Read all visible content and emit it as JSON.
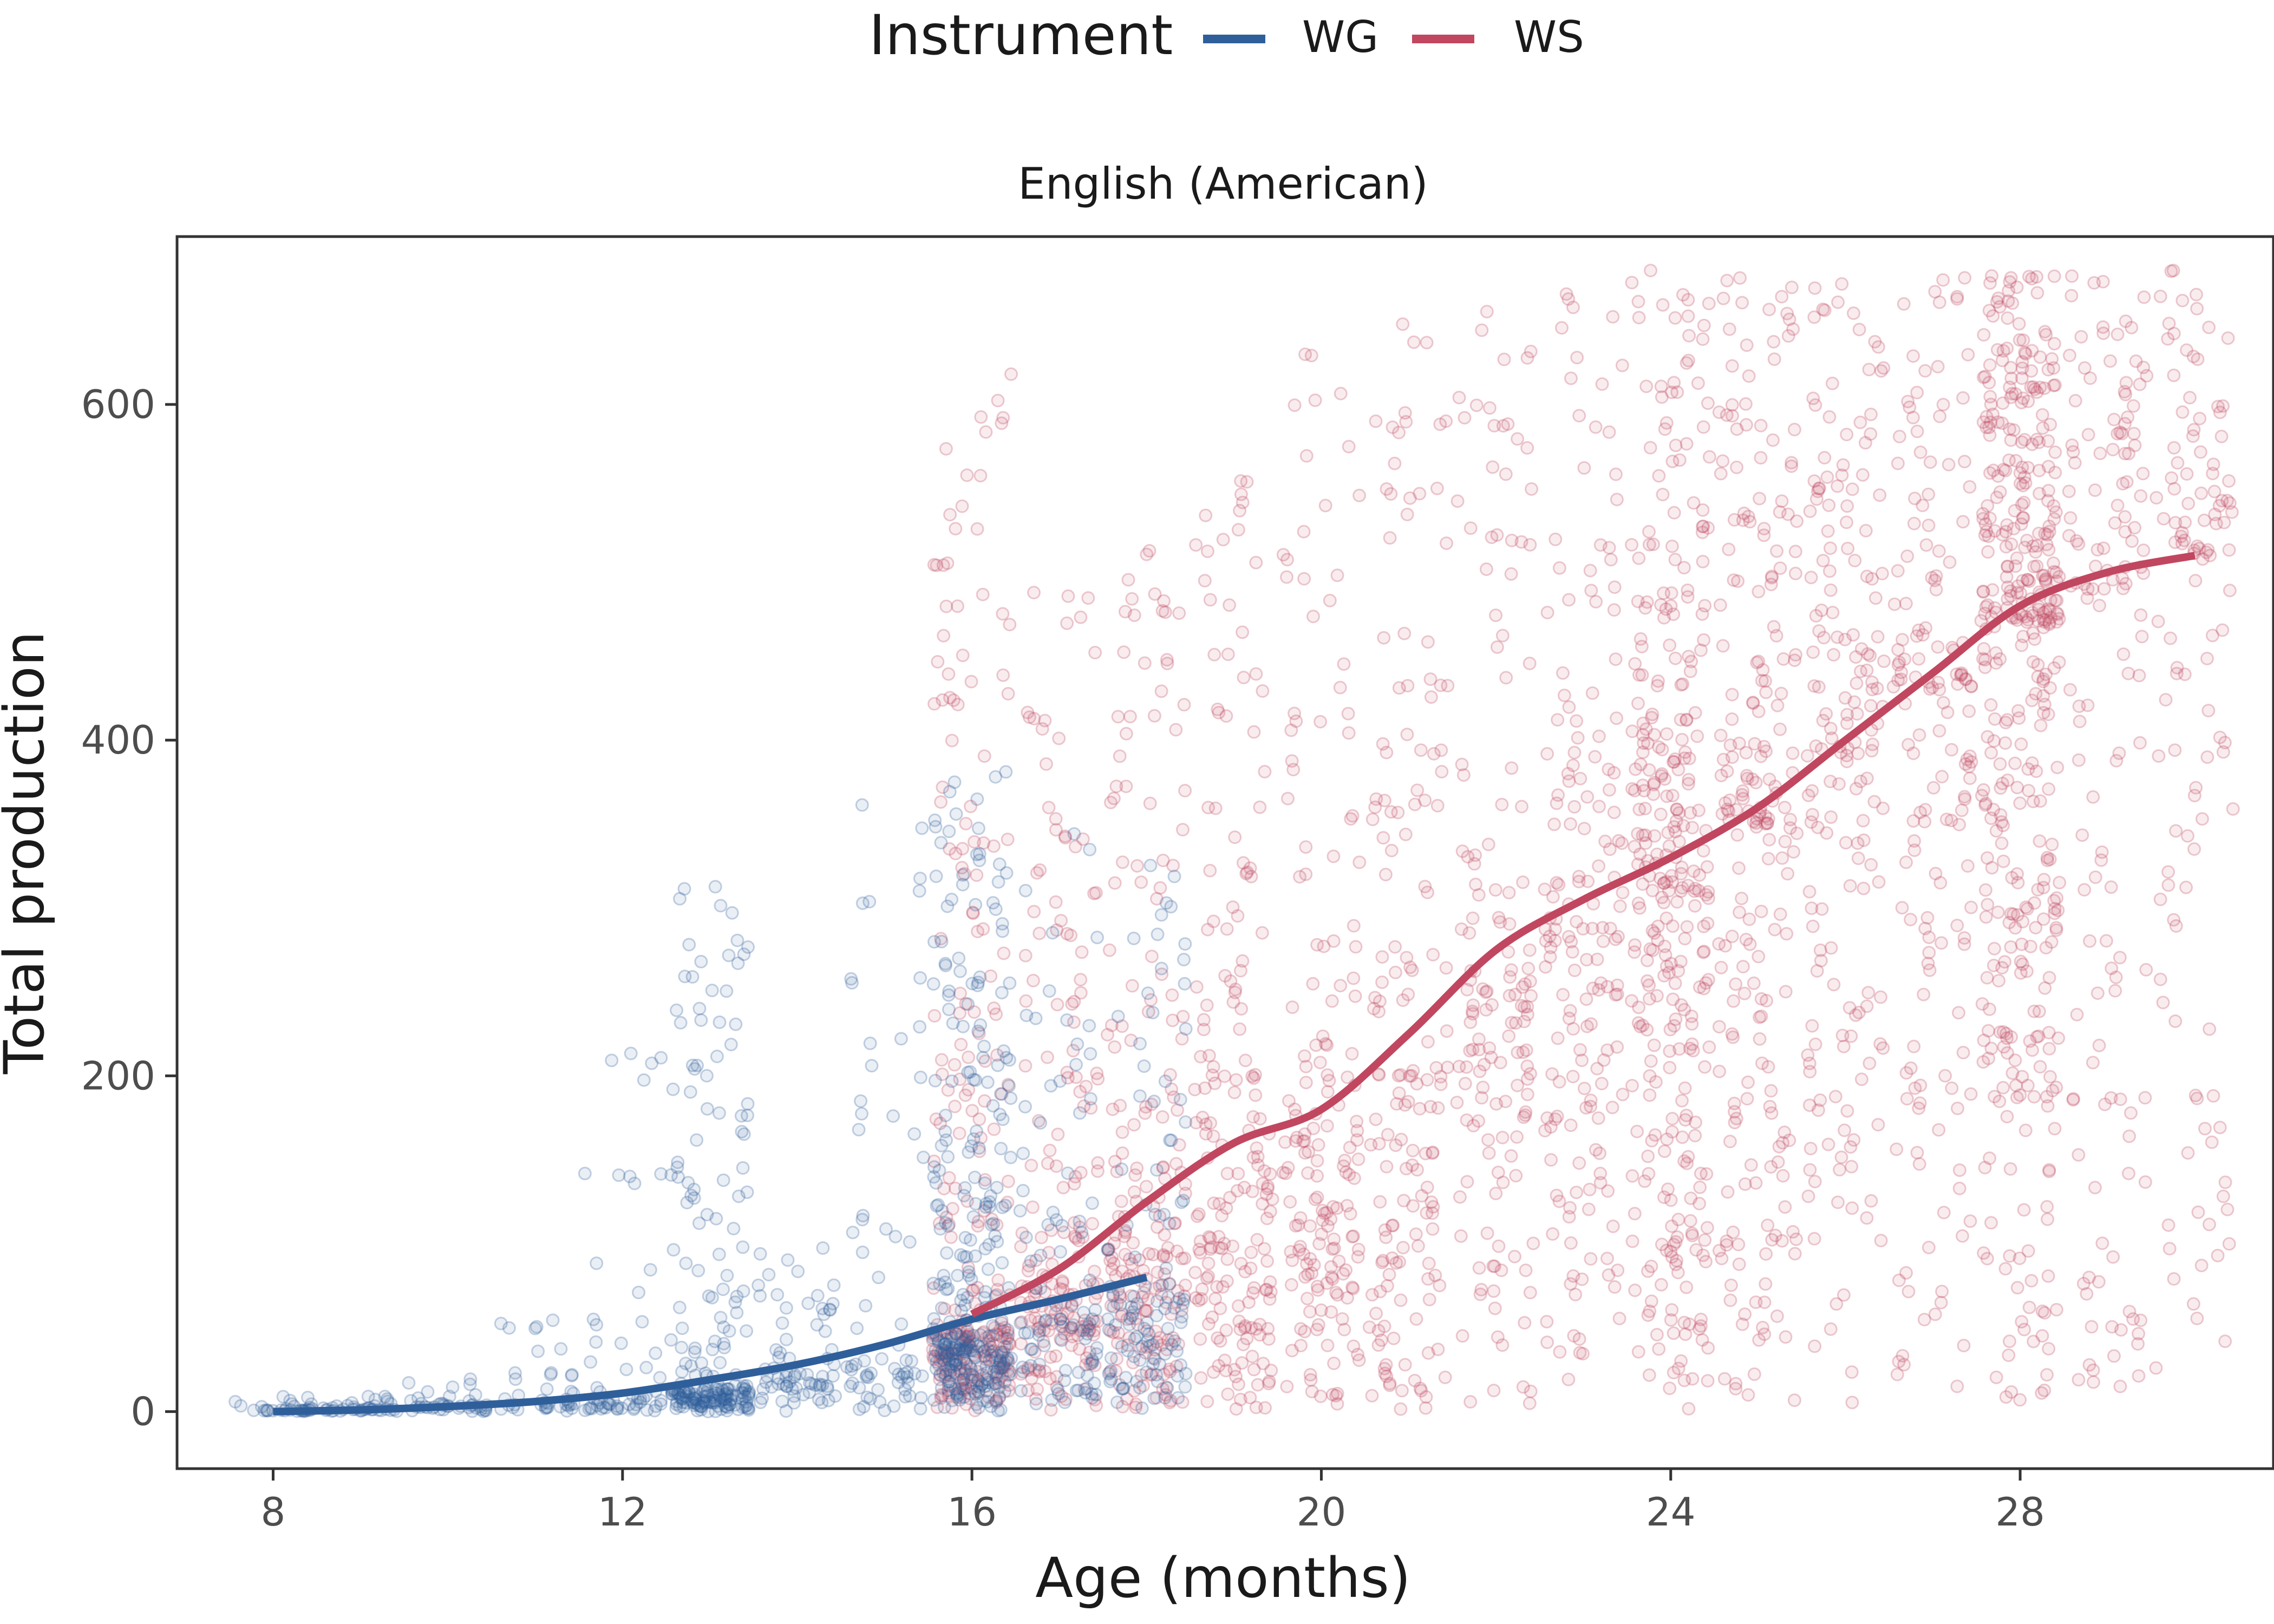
{
  "chart_data": {
    "type": "scatter",
    "title": "English (American)",
    "xlabel": "Age (months)",
    "ylabel": "Total production",
    "xlim": [
      6.9,
      30.9
    ],
    "ylim": [
      -34,
      700
    ],
    "x_ticks": [
      8,
      12,
      16,
      20,
      24,
      28
    ],
    "y_ticks": [
      0,
      200,
      400,
      600
    ],
    "legend": {
      "title": "Instrument",
      "position": "top",
      "entries": [
        {
          "label": "WG",
          "color": "#2f5f9a"
        },
        {
          "label": "WS",
          "color": "#c0475f"
        }
      ]
    },
    "grid": false,
    "series": [
      {
        "name": "WG",
        "color": "#2f5f9a",
        "age_range": [
          8,
          18
        ],
        "fit_line": {
          "x": [
            8,
            9,
            10,
            11,
            12,
            13,
            14,
            15,
            16,
            17,
            18
          ],
          "y": [
            0,
            1,
            3,
            6,
            11,
            19,
            28,
            40,
            55,
            67,
            80
          ]
        },
        "points_per_month": {
          "8": {
            "count": 30,
            "median": 1,
            "max": 10
          },
          "9": {
            "count": 35,
            "median": 2,
            "max": 12
          },
          "10": {
            "count": 40,
            "median": 3,
            "max": 20
          },
          "11": {
            "count": 40,
            "median": 5,
            "max": 55
          },
          "12": {
            "count": 60,
            "median": 8,
            "max": 215
          },
          "13": {
            "count": 220,
            "median": 14,
            "max": 315
          },
          "14": {
            "count": 70,
            "median": 22,
            "max": 110
          },
          "15": {
            "count": 70,
            "median": 32,
            "max": 375
          },
          "16": {
            "count": 300,
            "median": 45,
            "max": 385
          },
          "17": {
            "count": 90,
            "median": 55,
            "max": 350
          },
          "18": {
            "count": 110,
            "median": 68,
            "max": 330
          }
        }
      },
      {
        "name": "WS",
        "color": "#c0475f",
        "age_range": [
          16,
          30
        ],
        "fit_line": {
          "x": [
            16,
            17,
            18,
            19,
            20,
            21,
            22,
            23,
            24,
            25,
            26,
            27,
            28,
            29,
            30
          ],
          "y": [
            58,
            85,
            125,
            160,
            180,
            225,
            275,
            305,
            330,
            360,
            400,
            440,
            480,
            500,
            510
          ]
        },
        "points_per_month": {
          "16": {
            "count": 260,
            "median": 50,
            "max": 645
          },
          "17": {
            "count": 180,
            "median": 75,
            "max": 490
          },
          "18": {
            "count": 200,
            "median": 100,
            "max": 520
          },
          "19": {
            "count": 190,
            "median": 135,
            "max": 555
          },
          "20": {
            "count": 170,
            "median": 160,
            "max": 630
          },
          "21": {
            "count": 160,
            "median": 200,
            "max": 650
          },
          "22": {
            "count": 150,
            "median": 250,
            "max": 660
          },
          "23": {
            "count": 170,
            "median": 280,
            "max": 680
          },
          "24": {
            "count": 330,
            "median": 310,
            "max": 680
          },
          "25": {
            "count": 220,
            "median": 350,
            "max": 680
          },
          "26": {
            "count": 180,
            "median": 390,
            "max": 680
          },
          "27": {
            "count": 160,
            "median": 430,
            "max": 680
          },
          "28": {
            "count": 420,
            "median": 470,
            "max": 680
          },
          "29": {
            "count": 140,
            "median": 490,
            "max": 680
          },
          "30": {
            "count": 120,
            "median": 510,
            "max": 680
          }
        }
      }
    ]
  }
}
